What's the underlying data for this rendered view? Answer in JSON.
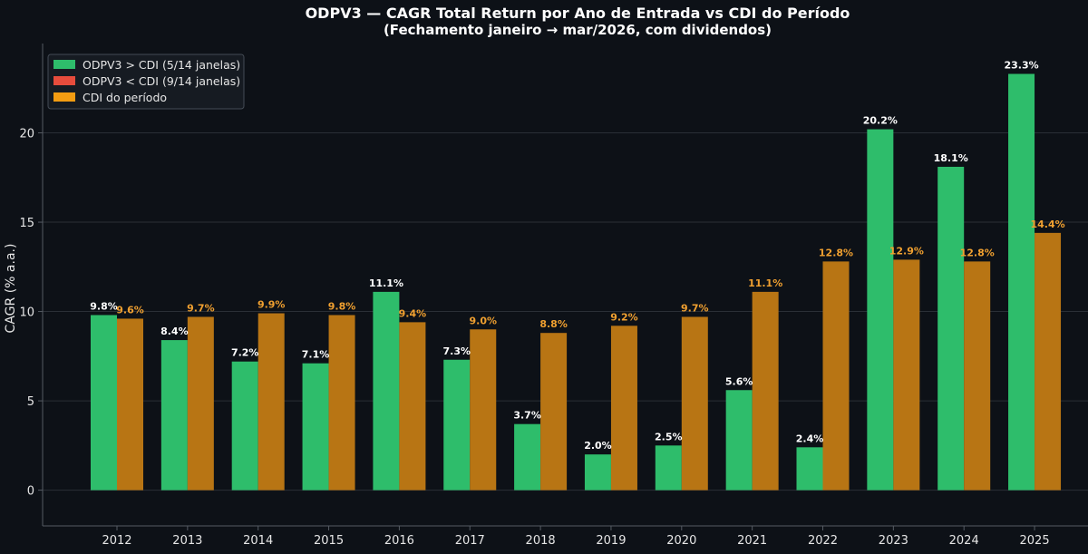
{
  "chart_data": {
    "type": "bar",
    "title": "ODPV3 — CAGR Total Return por Ano de Entrada vs CDI do Período",
    "subtitle": "(Fechamento janeiro → mar/2026, com dividendos)",
    "xlabel": "",
    "ylabel": "CAGR (% a.a.)",
    "ylim": [
      -2,
      25
    ],
    "yticks": [
      0,
      5,
      10,
      15,
      20
    ],
    "grid": true,
    "legend_position": "top-left",
    "categories": [
      "2012",
      "2013",
      "2014",
      "2015",
      "2016",
      "2017",
      "2018",
      "2019",
      "2020",
      "2021",
      "2022",
      "2023",
      "2024",
      "2025"
    ],
    "series": [
      {
        "name": "ODPV3",
        "values": [
          9.8,
          8.4,
          7.2,
          7.1,
          11.1,
          7.3,
          3.7,
          2.0,
          2.5,
          5.6,
          2.4,
          20.2,
          18.1,
          23.3
        ],
        "labels": [
          "9.8%",
          "8.4%",
          "7.2%",
          "7.1%",
          "11.1%",
          "7.3%",
          "3.7%",
          "2.0%",
          "2.5%",
          "5.6%",
          "2.4%",
          "20.2%",
          "18.1%",
          "23.3%"
        ]
      },
      {
        "name": "CDI do período",
        "values": [
          9.6,
          9.7,
          9.9,
          9.8,
          9.4,
          9.0,
          8.8,
          9.2,
          9.7,
          11.1,
          12.8,
          12.9,
          12.8,
          14.4
        ],
        "labels": [
          "9.6%",
          "9.7%",
          "9.9%",
          "9.8%",
          "9.4%",
          "9.0%",
          "8.8%",
          "9.2%",
          "9.7%",
          "11.1%",
          "12.8%",
          "12.9%",
          "12.8%",
          "14.4%"
        ]
      }
    ],
    "legend": [
      {
        "label": "ODPV3 > CDI (5/14 janelas)",
        "color": "#2ebd6b"
      },
      {
        "label": "ODPV3 < CDI (9/14 janelas)",
        "color": "#e74c3c"
      },
      {
        "label": "CDI do período",
        "color": "#f39c12"
      }
    ],
    "colors": {
      "background": "#0d1117",
      "above_cdi": "#2ebd6b",
      "below_cdi": "#2ebd6b",
      "cdi": "#b87514",
      "cdi_label": "#f0a030",
      "bar_label": "#ffffff",
      "grid": "#2a2f36",
      "axis": "#555b63"
    }
  }
}
